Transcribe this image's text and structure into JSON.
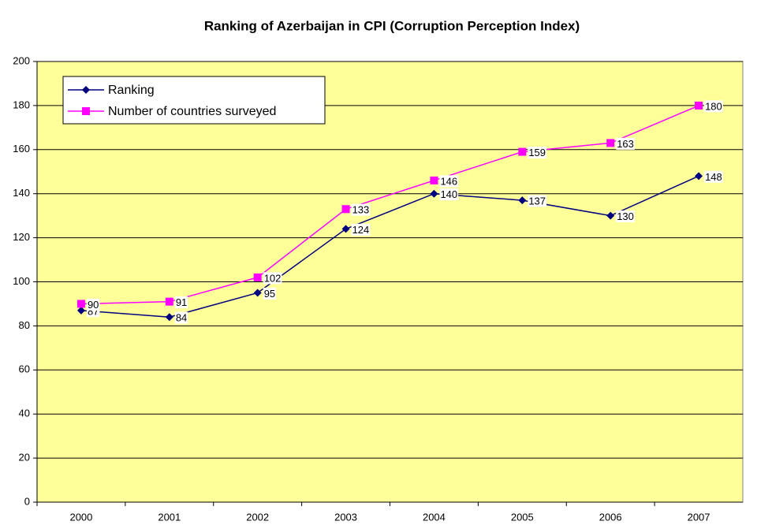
{
  "chart_data": {
    "type": "line",
    "title": "Ranking of Azerbaijan in CPI (Corruption Perception Index)",
    "categories": [
      "2000",
      "2001",
      "2002",
      "2003",
      "2004",
      "2005",
      "2006",
      "2007"
    ],
    "series": [
      {
        "name": "Ranking",
        "color": "#000080",
        "marker": "diamond",
        "values": [
          87,
          84,
          95,
          124,
          140,
          137,
          130,
          148
        ]
      },
      {
        "name": "Number of countries surveyed",
        "color": "#ff00ff",
        "marker": "square",
        "values": [
          90,
          91,
          102,
          133,
          146,
          159,
          163,
          180
        ]
      }
    ],
    "ylim": [
      0,
      200
    ],
    "yticks": [
      0,
      20,
      40,
      60,
      80,
      100,
      120,
      140,
      160,
      180,
      200
    ],
    "grid": true,
    "legend": "upper left",
    "background": "#ffff99"
  }
}
